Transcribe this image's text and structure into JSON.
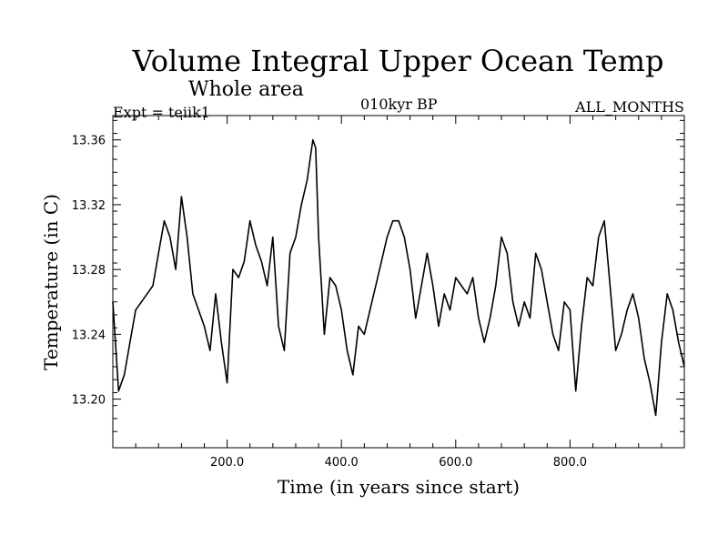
{
  "chart_data": {
    "type": "line",
    "title": "Volume Integral Upper Ocean Temp",
    "subtitle": "Whole area",
    "annotations": {
      "left": "Expt = teiik1",
      "center": "010kyr BP",
      "right": "ALL_MONTHS"
    },
    "xlabel": "Time (in years since start)",
    "ylabel": "Temperature (in C)",
    "xlim": [
      0,
      1000
    ],
    "ylim": [
      13.17,
      13.375
    ],
    "xticks": [
      200,
      400,
      600,
      800
    ],
    "xtick_labels": [
      "200.0",
      "400.0",
      "600.0",
      "800.0"
    ],
    "yticks": [
      13.2,
      13.24,
      13.28,
      13.32,
      13.36
    ],
    "ytick_labels": [
      "13.20",
      "13.24",
      "13.28",
      "13.32",
      "13.36"
    ],
    "grid": false,
    "series": [
      {
        "color": "#000000",
        "x": [
          0,
          10,
          20,
          30,
          40,
          50,
          60,
          70,
          80,
          90,
          100,
          110,
          120,
          130,
          140,
          150,
          160,
          170,
          180,
          190,
          200,
          210,
          220,
          230,
          240,
          250,
          260,
          270,
          280,
          290,
          300,
          310,
          320,
          330,
          340,
          350,
          355,
          360,
          370,
          380,
          390,
          400,
          410,
          420,
          430,
          440,
          450,
          460,
          470,
          480,
          490,
          500,
          510,
          520,
          530,
          540,
          550,
          560,
          570,
          580,
          590,
          600,
          610,
          620,
          630,
          640,
          650,
          660,
          670,
          680,
          690,
          700,
          710,
          720,
          730,
          740,
          750,
          760,
          770,
          780,
          790,
          800,
          810,
          820,
          830,
          840,
          850,
          860,
          870,
          880,
          890,
          900,
          910,
          920,
          930,
          940,
          950,
          960,
          970,
          980,
          990,
          1000
        ],
        "y": [
          13.26,
          13.205,
          13.215,
          13.235,
          13.255,
          13.26,
          13.265,
          13.27,
          13.29,
          13.31,
          13.3,
          13.28,
          13.325,
          13.3,
          13.265,
          13.255,
          13.245,
          13.23,
          13.265,
          13.235,
          13.21,
          13.28,
          13.275,
          13.285,
          13.31,
          13.295,
          13.285,
          13.27,
          13.3,
          13.245,
          13.23,
          13.29,
          13.3,
          13.32,
          13.335,
          13.36,
          13.355,
          13.3,
          13.24,
          13.275,
          13.27,
          13.255,
          13.23,
          13.215,
          13.245,
          13.24,
          13.255,
          13.27,
          13.285,
          13.3,
          13.31,
          13.31,
          13.3,
          13.28,
          13.25,
          13.27,
          13.29,
          13.27,
          13.245,
          13.265,
          13.255,
          13.275,
          13.27,
          13.265,
          13.275,
          13.25,
          13.235,
          13.25,
          13.27,
          13.3,
          13.29,
          13.26,
          13.245,
          13.26,
          13.25,
          13.29,
          13.28,
          13.26,
          13.24,
          13.23,
          13.26,
          13.255,
          13.205,
          13.245,
          13.275,
          13.27,
          13.3,
          13.31,
          13.27,
          13.23,
          13.24,
          13.255,
          13.265,
          13.25,
          13.225,
          13.21,
          13.19,
          13.235,
          13.265,
          13.255,
          13.235,
          13.22
        ]
      }
    ]
  }
}
